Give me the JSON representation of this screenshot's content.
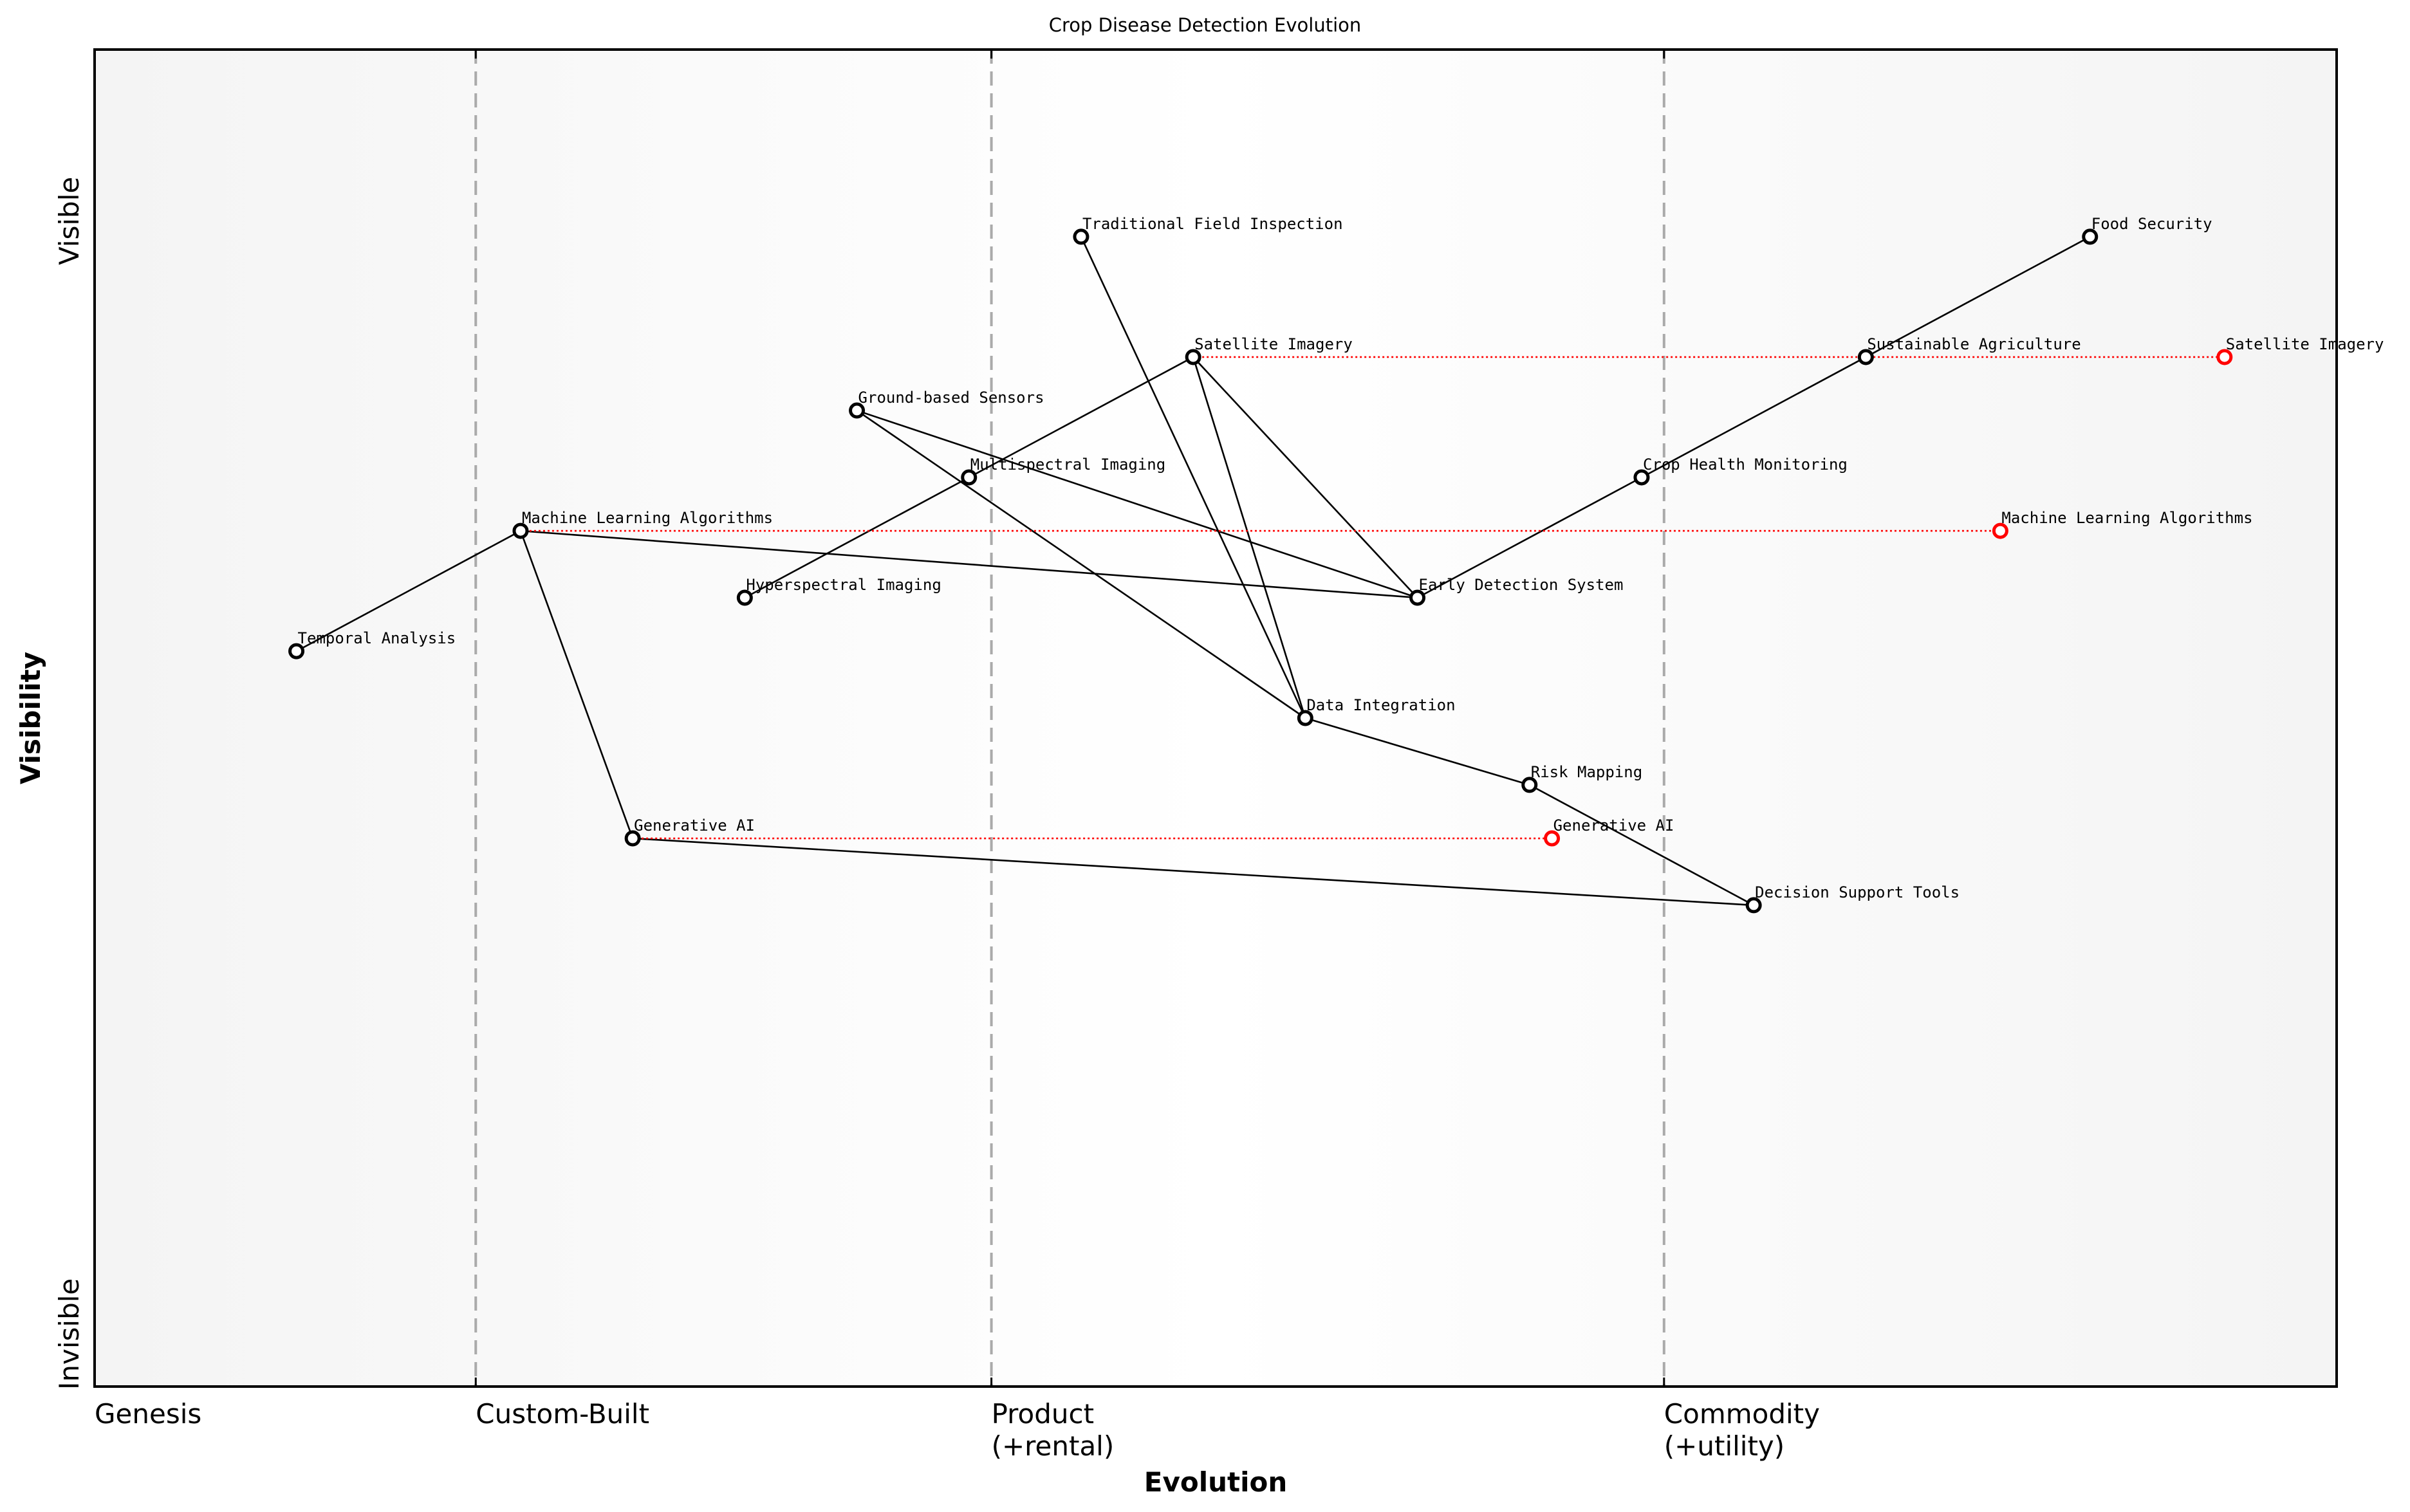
{
  "title": "Crop Disease Detection Evolution",
  "axes": {
    "x_title": "Evolution",
    "y_title": "Visibility",
    "y_top_label": "Visible",
    "y_bottom_label": "Invisible",
    "stages": [
      {
        "label": "Genesis",
        "sub": "",
        "x": 0.0
      },
      {
        "label": "Custom-Built",
        "sub": "",
        "x": 0.17
      },
      {
        "label": "Product",
        "sub": "(+rental)",
        "x": 0.4
      },
      {
        "label": "Commodity",
        "sub": "(+utility)",
        "x": 0.7
      }
    ]
  },
  "colors": {
    "node_stroke": "#000000",
    "node_fill": "#ffffff",
    "evolve_color": "#ff0000",
    "divider": "#aaaaaa",
    "bg_edge": "#f4f4f4",
    "bg_center": "#ffffff"
  },
  "chart_data": {
    "type": "wardley_map",
    "title": "Crop Disease Detection Evolution",
    "xlabel": "Evolution",
    "ylabel": "Visibility",
    "xlim": [
      0,
      1
    ],
    "ylim": [
      0,
      1
    ],
    "x_stage_boundaries": [
      0.17,
      0.4,
      0.7
    ],
    "components": [
      {
        "name": "Traditional Field Inspection",
        "x": 0.44,
        "y": 0.86
      },
      {
        "name": "Food Security",
        "x": 0.89,
        "y": 0.86
      },
      {
        "name": "Satellite Imagery",
        "x": 0.49,
        "y": 0.77
      },
      {
        "name": "Sustainable Agriculture",
        "x": 0.79,
        "y": 0.77
      },
      {
        "name": "Ground-based Sensors",
        "x": 0.34,
        "y": 0.73
      },
      {
        "name": "Multispectral Imaging",
        "x": 0.39,
        "y": 0.68
      },
      {
        "name": "Crop Health Monitoring",
        "x": 0.69,
        "y": 0.68
      },
      {
        "name": "Machine Learning Algorithms",
        "x": 0.19,
        "y": 0.64
      },
      {
        "name": "Hyperspectral Imaging",
        "x": 0.29,
        "y": 0.59
      },
      {
        "name": "Early Detection System",
        "x": 0.59,
        "y": 0.59
      },
      {
        "name": "Temporal Analysis",
        "x": 0.09,
        "y": 0.55
      },
      {
        "name": "Data Integration",
        "x": 0.54,
        "y": 0.5
      },
      {
        "name": "Risk Mapping",
        "x": 0.64,
        "y": 0.45
      },
      {
        "name": "Generative AI",
        "x": 0.24,
        "y": 0.41
      },
      {
        "name": "Decision Support Tools",
        "x": 0.74,
        "y": 0.36
      }
    ],
    "links": [
      [
        "Food Security",
        "Sustainable Agriculture"
      ],
      [
        "Sustainable Agriculture",
        "Crop Health Monitoring"
      ],
      [
        "Crop Health Monitoring",
        "Early Detection System"
      ],
      [
        "Early Detection System",
        "Satellite Imagery"
      ],
      [
        "Early Detection System",
        "Ground-based Sensors"
      ],
      [
        "Early Detection System",
        "Machine Learning Algorithms"
      ],
      [
        "Satellite Imagery",
        "Multispectral Imaging"
      ],
      [
        "Multispectral Imaging",
        "Hyperspectral Imaging"
      ],
      [
        "Satellite Imagery",
        "Data Integration"
      ],
      [
        "Traditional Field Inspection",
        "Data Integration"
      ],
      [
        "Ground-based Sensors",
        "Data Integration"
      ],
      [
        "Data Integration",
        "Risk Mapping"
      ],
      [
        "Risk Mapping",
        "Decision Support Tools"
      ],
      [
        "Machine Learning Algorithms",
        "Temporal Analysis"
      ],
      [
        "Machine Learning Algorithms",
        "Generative AI"
      ],
      [
        "Generative AI",
        "Decision Support Tools"
      ]
    ],
    "evolutions": [
      {
        "name": "Satellite Imagery",
        "from_x": 0.49,
        "to_x": 0.95,
        "y": 0.77
      },
      {
        "name": "Machine Learning Algorithms",
        "from_x": 0.19,
        "to_x": 0.85,
        "y": 0.64
      },
      {
        "name": "Generative AI",
        "from_x": 0.24,
        "to_x": 0.65,
        "y": 0.41
      }
    ]
  }
}
